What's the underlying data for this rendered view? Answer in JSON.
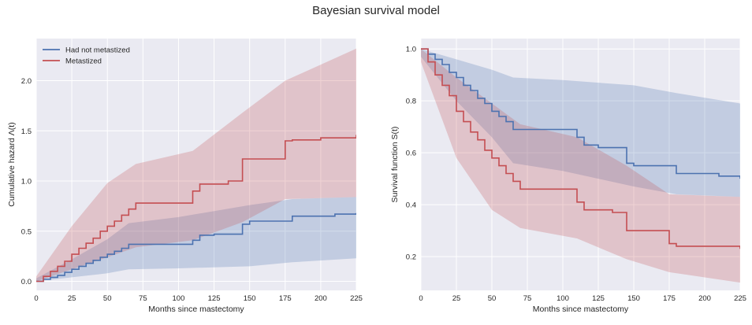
{
  "suptitle": "Bayesian survival model",
  "colors": {
    "background": "#EAEAF2",
    "grid": "#FFFFFF",
    "series_blue": "#4C72B0",
    "series_red": "#C44E52"
  },
  "chart_data": [
    {
      "type": "line",
      "step": true,
      "title": "",
      "xlabel": "Months since mastectomy",
      "ylabel": "Cumulative hazard Λ(t)",
      "xlim": [
        0,
        225
      ],
      "ylim": [
        -0.09,
        2.42
      ],
      "xticks": [
        "0",
        "25",
        "50",
        "75",
        "100",
        "125",
        "150",
        "175",
        "200",
        "225"
      ],
      "xtick_values": [
        0,
        25,
        50,
        75,
        100,
        125,
        150,
        175,
        200,
        225
      ],
      "yticks": [
        "0.0",
        "0.5",
        "1.0",
        "1.5",
        "2.0"
      ],
      "ytick_values": [
        0,
        0.5,
        1.0,
        1.5,
        2.0
      ],
      "grid": true,
      "legend": {
        "placement": "top-left",
        "entries": [
          "Had not metastized",
          "Metastized"
        ]
      },
      "series": [
        {
          "name": "Had not metastized",
          "color": "#4C72B0",
          "x": [
            0,
            5,
            10,
            15,
            20,
            25,
            30,
            35,
            40,
            45,
            50,
            55,
            60,
            65,
            110,
            115,
            125,
            145,
            150,
            180,
            210,
            225
          ],
          "y": [
            0.0,
            0.02,
            0.04,
            0.06,
            0.09,
            0.12,
            0.15,
            0.18,
            0.21,
            0.24,
            0.27,
            0.3,
            0.33,
            0.37,
            0.41,
            0.46,
            0.47,
            0.57,
            0.6,
            0.65,
            0.67,
            0.68
          ],
          "band_x": [
            0,
            25,
            50,
            65,
            100,
            150,
            180,
            225
          ],
          "band_lower": [
            0.0,
            0.04,
            0.08,
            0.12,
            0.13,
            0.15,
            0.19,
            0.23
          ],
          "band_upper": [
            0.03,
            0.22,
            0.42,
            0.58,
            0.64,
            0.76,
            0.82,
            0.84
          ]
        },
        {
          "name": "Metastized",
          "color": "#C44E52",
          "x": [
            0,
            5,
            10,
            15,
            20,
            25,
            30,
            35,
            40,
            45,
            50,
            55,
            60,
            65,
            70,
            110,
            115,
            135,
            145,
            175,
            180,
            200,
            225
          ],
          "y": [
            0.0,
            0.05,
            0.1,
            0.15,
            0.2,
            0.27,
            0.33,
            0.38,
            0.43,
            0.5,
            0.55,
            0.6,
            0.66,
            0.72,
            0.78,
            0.9,
            0.97,
            1.0,
            1.22,
            1.4,
            1.41,
            1.43,
            1.46
          ],
          "band_x": [
            0,
            25,
            50,
            70,
            110,
            145,
            175,
            225
          ],
          "band_lower": [
            0.0,
            0.12,
            0.24,
            0.34,
            0.41,
            0.59,
            0.82,
            0.84
          ],
          "band_upper": [
            0.05,
            0.55,
            0.98,
            1.17,
            1.3,
            1.68,
            2.0,
            2.32
          ]
        }
      ]
    },
    {
      "type": "line",
      "step": true,
      "title": "",
      "xlabel": "Months since mastectomy",
      "ylabel": "Survival function S(t)",
      "xlim": [
        0,
        225
      ],
      "ylim": [
        0.07,
        1.04
      ],
      "xticks": [
        "0",
        "25",
        "50",
        "75",
        "100",
        "125",
        "150",
        "175",
        "200",
        "225"
      ],
      "xtick_values": [
        0,
        25,
        50,
        75,
        100,
        125,
        150,
        175,
        200,
        225
      ],
      "yticks": [
        "0.2",
        "0.4",
        "0.6",
        "0.8",
        "1.0"
      ],
      "ytick_values": [
        0.2,
        0.4,
        0.6,
        0.8,
        1.0
      ],
      "grid": true,
      "series": [
        {
          "name": "Had not metastized",
          "color": "#4C72B0",
          "x": [
            0,
            5,
            10,
            15,
            20,
            25,
            30,
            35,
            40,
            45,
            50,
            55,
            60,
            65,
            110,
            115,
            125,
            145,
            150,
            180,
            210,
            225
          ],
          "y": [
            1.0,
            0.98,
            0.96,
            0.94,
            0.91,
            0.89,
            0.86,
            0.84,
            0.81,
            0.79,
            0.76,
            0.74,
            0.72,
            0.69,
            0.66,
            0.63,
            0.62,
            0.56,
            0.55,
            0.52,
            0.51,
            0.5
          ],
          "band_x": [
            0,
            25,
            50,
            65,
            100,
            150,
            180,
            225
          ],
          "band_lower": [
            0.97,
            0.8,
            0.66,
            0.56,
            0.53,
            0.47,
            0.44,
            0.43
          ],
          "band_upper": [
            1.0,
            0.96,
            0.92,
            0.89,
            0.88,
            0.86,
            0.83,
            0.79
          ]
        },
        {
          "name": "Metastized",
          "color": "#C44E52",
          "x": [
            0,
            5,
            10,
            15,
            20,
            25,
            30,
            35,
            40,
            45,
            50,
            55,
            60,
            65,
            70,
            110,
            115,
            135,
            145,
            175,
            180,
            200,
            225
          ],
          "y": [
            1.0,
            0.95,
            0.9,
            0.86,
            0.82,
            0.76,
            0.72,
            0.68,
            0.65,
            0.61,
            0.58,
            0.55,
            0.52,
            0.49,
            0.46,
            0.41,
            0.38,
            0.37,
            0.3,
            0.25,
            0.24,
            0.24,
            0.23
          ],
          "band_x": [
            0,
            25,
            50,
            70,
            110,
            145,
            175,
            225
          ],
          "band_lower": [
            0.95,
            0.58,
            0.38,
            0.31,
            0.27,
            0.19,
            0.14,
            0.1
          ],
          "band_upper": [
            1.0,
            0.89,
            0.79,
            0.71,
            0.66,
            0.55,
            0.44,
            0.43
          ]
        }
      ]
    }
  ]
}
